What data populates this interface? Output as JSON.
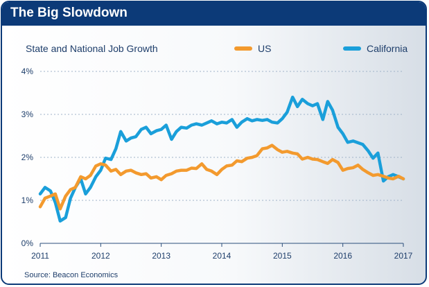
{
  "header": {
    "title": "The Big Slowdown"
  },
  "chart_data": {
    "type": "line",
    "title": "State and National Job Growth",
    "source": "Source: Beacon Economics",
    "xlabel": "",
    "ylabel": "",
    "x_ticks": [
      "2011",
      "2012",
      "2013",
      "2014",
      "2015",
      "2016",
      "2017"
    ],
    "y_ticks": [
      "0%",
      "1%",
      "2%",
      "3%",
      "4%"
    ],
    "xlim": [
      2011.0,
      2017.0
    ],
    "ylim": [
      0,
      4
    ],
    "grid": "horizontal dashed",
    "legend_position": "top-right",
    "series": [
      {
        "name": "US",
        "color": "#f39a2e",
        "x": [
          2011.0,
          2011.08,
          2011.17,
          2011.25,
          2011.33,
          2011.42,
          2011.5,
          2011.58,
          2011.67,
          2011.75,
          2011.83,
          2011.92,
          2012.0,
          2012.08,
          2012.17,
          2012.25,
          2012.33,
          2012.42,
          2012.5,
          2012.58,
          2012.67,
          2012.75,
          2012.83,
          2012.92,
          2013.0,
          2013.08,
          2013.17,
          2013.25,
          2013.33,
          2013.42,
          2013.5,
          2013.58,
          2013.67,
          2013.75,
          2013.83,
          2013.92,
          2014.0,
          2014.08,
          2014.17,
          2014.25,
          2014.33,
          2014.42,
          2014.5,
          2014.58,
          2014.67,
          2014.75,
          2014.83,
          2014.92,
          2015.0,
          2015.08,
          2015.17,
          2015.25,
          2015.33,
          2015.42,
          2015.5,
          2015.58,
          2015.67,
          2015.75,
          2015.83,
          2015.92,
          2016.0,
          2016.08,
          2016.17,
          2016.25,
          2016.33,
          2016.42,
          2016.5,
          2016.58,
          2016.67,
          2016.75,
          2016.83,
          2016.92,
          2017.0
        ],
        "values": [
          0.85,
          1.05,
          1.1,
          1.15,
          0.8,
          1.1,
          1.25,
          1.3,
          1.55,
          1.5,
          1.58,
          1.8,
          1.85,
          1.82,
          1.68,
          1.72,
          1.6,
          1.68,
          1.7,
          1.64,
          1.6,
          1.62,
          1.52,
          1.55,
          1.48,
          1.58,
          1.62,
          1.68,
          1.7,
          1.7,
          1.75,
          1.74,
          1.85,
          1.72,
          1.68,
          1.6,
          1.72,
          1.8,
          1.82,
          1.92,
          1.9,
          1.98,
          2.0,
          2.04,
          2.2,
          2.22,
          2.28,
          2.18,
          2.12,
          2.14,
          2.1,
          2.08,
          1.96,
          2.0,
          1.96,
          1.95,
          1.9,
          1.86,
          1.95,
          1.88,
          1.7,
          1.74,
          1.76,
          1.82,
          1.72,
          1.64,
          1.58,
          1.6,
          1.56,
          1.52,
          1.5,
          1.56,
          1.5
        ]
      },
      {
        "name": "California",
        "color": "#1a9fda",
        "x": [
          2011.0,
          2011.08,
          2011.17,
          2011.25,
          2011.33,
          2011.42,
          2011.5,
          2011.58,
          2011.67,
          2011.75,
          2011.83,
          2011.92,
          2012.0,
          2012.08,
          2012.17,
          2012.25,
          2012.33,
          2012.42,
          2012.5,
          2012.58,
          2012.67,
          2012.75,
          2012.83,
          2012.92,
          2013.0,
          2013.08,
          2013.17,
          2013.25,
          2013.33,
          2013.42,
          2013.5,
          2013.58,
          2013.67,
          2013.75,
          2013.83,
          2013.92,
          2014.0,
          2014.08,
          2014.17,
          2014.25,
          2014.33,
          2014.42,
          2014.5,
          2014.58,
          2014.67,
          2014.75,
          2014.83,
          2014.92,
          2015.0,
          2015.08,
          2015.17,
          2015.25,
          2015.33,
          2015.42,
          2015.5,
          2015.58,
          2015.67,
          2015.75,
          2015.83,
          2015.92,
          2016.0,
          2016.08,
          2016.17,
          2016.25,
          2016.33,
          2016.42,
          2016.5,
          2016.58,
          2016.67,
          2016.75,
          2016.83,
          2016.92,
          2017.0
        ],
        "values": [
          1.15,
          1.3,
          1.22,
          0.95,
          0.52,
          0.6,
          1.05,
          1.3,
          1.5,
          1.15,
          1.3,
          1.55,
          1.7,
          1.98,
          1.95,
          2.2,
          2.6,
          2.38,
          2.45,
          2.48,
          2.65,
          2.7,
          2.55,
          2.62,
          2.65,
          2.75,
          2.42,
          2.6,
          2.7,
          2.68,
          2.75,
          2.78,
          2.75,
          2.8,
          2.85,
          2.78,
          2.82,
          2.8,
          2.88,
          2.7,
          2.82,
          2.9,
          2.85,
          2.88,
          2.86,
          2.88,
          2.82,
          2.8,
          2.9,
          3.05,
          3.4,
          3.18,
          3.35,
          3.25,
          3.2,
          3.25,
          2.88,
          3.3,
          3.1,
          2.7,
          2.55,
          2.35,
          2.38,
          2.34,
          2.3,
          2.15,
          1.98,
          2.1,
          1.45,
          1.55,
          1.6,
          1.55,
          1.5
        ]
      }
    ]
  }
}
